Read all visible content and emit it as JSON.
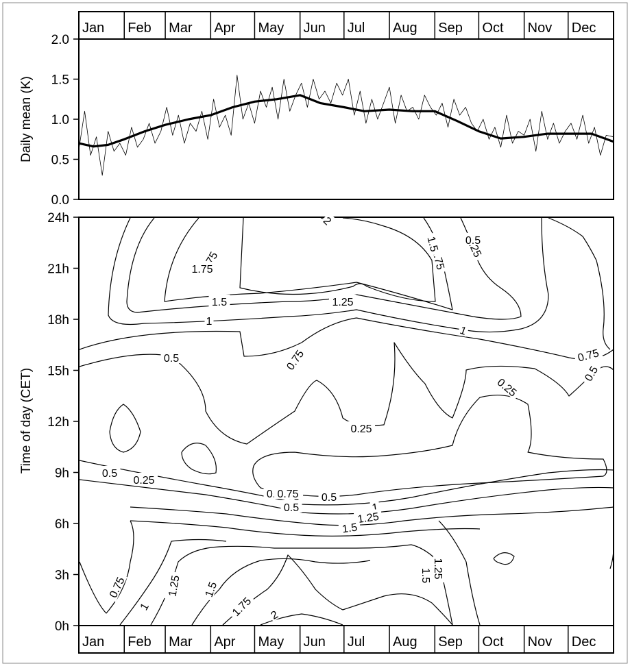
{
  "chart_data": [
    {
      "type": "line",
      "panel": "top",
      "ylabel": "Daily mean (K)",
      "ylim": [
        0,
        2
      ],
      "yticks": [
        "0.0",
        "0.5",
        "1.0",
        "1.5",
        "2.0"
      ],
      "months": [
        "Jan",
        "Feb",
        "Mar",
        "Apr",
        "May",
        "Jun",
        "Jul",
        "Aug",
        "Sep",
        "Oct",
        "Nov",
        "Dec"
      ],
      "xlim_day": [
        0,
        365
      ],
      "series": [
        {
          "style": "thin",
          "x_day": [
            0,
            4,
            8,
            12,
            16,
            20,
            24,
            28,
            32,
            36,
            40,
            44,
            48,
            52,
            56,
            60,
            64,
            68,
            72,
            76,
            80,
            84,
            88,
            92,
            96,
            100,
            104,
            108,
            112,
            116,
            120,
            124,
            128,
            132,
            136,
            140,
            144,
            148,
            152,
            156,
            160,
            164,
            168,
            172,
            176,
            180,
            184,
            188,
            192,
            196,
            200,
            204,
            208,
            212,
            216,
            220,
            224,
            228,
            232,
            236,
            240,
            244,
            248,
            252,
            256,
            260,
            264,
            268,
            272,
            276,
            280,
            284,
            288,
            292,
            296,
            300,
            304,
            308,
            312,
            316,
            320,
            324,
            328,
            332,
            336,
            340,
            344,
            348,
            352,
            356,
            360,
            365
          ],
          "values": [
            0.62,
            1.1,
            0.55,
            0.78,
            0.3,
            0.85,
            0.6,
            0.7,
            0.55,
            0.9,
            0.65,
            0.75,
            0.95,
            0.7,
            0.85,
            1.15,
            0.8,
            1.05,
            0.7,
            0.95,
            0.85,
            1.1,
            0.75,
            1.25,
            0.9,
            1.05,
            0.8,
            1.55,
            1.0,
            1.2,
            0.95,
            1.35,
            1.15,
            1.4,
            1.0,
            1.5,
            1.1,
            1.3,
            1.45,
            1.15,
            1.5,
            1.25,
            1.35,
            1.2,
            1.45,
            1.3,
            1.5,
            1.05,
            1.35,
            0.95,
            1.25,
            1.0,
            1.2,
            1.4,
            0.95,
            1.3,
            1.1,
            1.15,
            1.0,
            1.3,
            1.15,
            1.05,
            1.2,
            0.9,
            1.25,
            1.05,
            1.15,
            0.95,
            0.85,
            1.0,
            0.75,
            0.9,
            0.65,
            1.05,
            0.7,
            0.85,
            0.8,
            1.0,
            0.6,
            1.1,
            0.75,
            0.95,
            0.7,
            0.85,
            0.95,
            0.75,
            1.05,
            0.7,
            0.9,
            0.55,
            0.8,
            0.78
          ]
        },
        {
          "style": "smoothed",
          "x_day": [
            0,
            10,
            20,
            31,
            45,
            59,
            75,
            90,
            105,
            120,
            135,
            151,
            165,
            181,
            195,
            212,
            228,
            243,
            258,
            273,
            288,
            304,
            320,
            334,
            350,
            365
          ],
          "values": [
            0.7,
            0.66,
            0.68,
            0.75,
            0.85,
            0.93,
            1.0,
            1.05,
            1.15,
            1.22,
            1.25,
            1.3,
            1.2,
            1.15,
            1.1,
            1.12,
            1.1,
            1.1,
            0.98,
            0.85,
            0.76,
            0.78,
            0.82,
            0.82,
            0.82,
            0.72
          ]
        }
      ]
    },
    {
      "type": "contour",
      "panel": "bottom",
      "ylabel": "Time of day (CET)",
      "yticks": [
        "0h",
        "3h",
        "6h",
        "9h",
        "12h",
        "15h",
        "18h",
        "21h",
        "24h"
      ],
      "ylim_hours": [
        0,
        24
      ],
      "months": [
        "Jan",
        "Feb",
        "Mar",
        "Apr",
        "May",
        "Jun",
        "Jul",
        "Aug",
        "Sep",
        "Oct",
        "Nov",
        "Dec"
      ],
      "contour_labels": [
        "2",
        "1.75",
        "1.5",
        "1.25",
        "1",
        "0.75",
        "0.5",
        "0.25",
        "0.5",
        "0.75",
        "1",
        "1.25",
        "1.5",
        "1.75",
        "1.75",
        "1.5",
        "1.25",
        "1",
        "0.75",
        "0.5",
        "0.25",
        "0.5",
        "0.75",
        "0.5",
        "1",
        "1.25",
        "1.5",
        "1.75",
        "2",
        "1.5",
        "1.25",
        "0.25",
        "0.75",
        "0.5",
        "0.5"
      ],
      "levels": [
        0.25,
        0.5,
        0.75,
        1,
        1.25,
        1.5,
        1.75,
        2
      ]
    }
  ]
}
